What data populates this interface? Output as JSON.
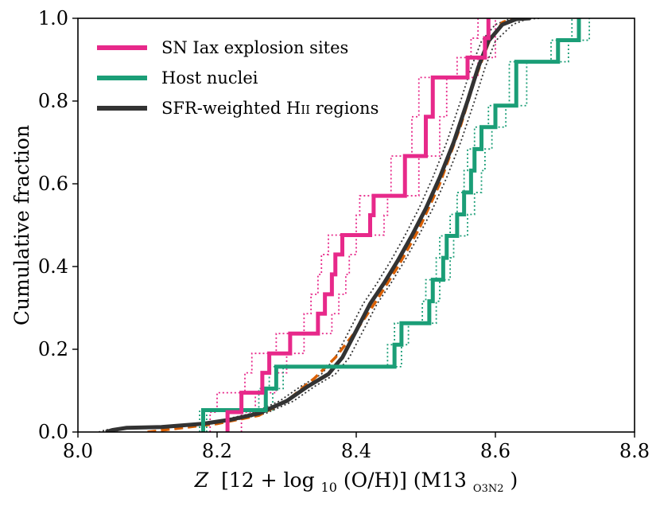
{
  "chart_data": {
    "type": "line",
    "xlabel": "Z [12 + log10(O/H)] (M13O3N2)",
    "xlabel_parts": {
      "z": "Z",
      "bracket_text": "[12 + log",
      "sub10": "10",
      "oh_text": "(O/H)] (M13",
      "sub_o3n2": "O3N2",
      "close": ")"
    },
    "ylabel": "Cumulative fraction",
    "xlim": [
      8.0,
      8.8
    ],
    "ylim": [
      0.0,
      1.0
    ],
    "xticks": [
      "8.0",
      "8.2",
      "8.4",
      "8.6",
      "8.8"
    ],
    "yticks": [
      "0.0",
      "0.2",
      "0.4",
      "0.6",
      "0.8",
      "1.0"
    ],
    "legend_position": "top-left",
    "legend": [
      {
        "label": "SN Iax explosion sites",
        "color": "#e7298a"
      },
      {
        "label": "Host nuclei",
        "color": "#1b9e77"
      },
      {
        "label": "SFR-weighted HII regions",
        "color": "#333333",
        "label_main": "SFR-weighted H",
        "label_sc": "II",
        "label_tail": " regions"
      }
    ],
    "series": [
      {
        "name": "SN Iax explosion sites",
        "color": "#e7298a",
        "style": "step",
        "x": [
          8.215,
          8.235,
          8.265,
          8.275,
          8.305,
          8.345,
          8.355,
          8.365,
          8.37,
          8.38,
          8.42,
          8.425,
          8.47,
          8.5,
          8.51,
          8.51,
          8.56,
          8.585,
          8.59
        ],
        "y": [
          0.048,
          0.095,
          0.143,
          0.19,
          0.238,
          0.286,
          0.333,
          0.381,
          0.429,
          0.476,
          0.524,
          0.571,
          0.667,
          0.762,
          0.81,
          0.857,
          0.905,
          0.952,
          1.0
        ]
      },
      {
        "name": "SN Iax explosion sites bound (upper)",
        "color": "#e7298a",
        "style": "dotted-step",
        "x": [
          8.19,
          8.2,
          8.24,
          8.25,
          8.285,
          8.325,
          8.335,
          8.345,
          8.35,
          8.36,
          8.4,
          8.405,
          8.45,
          8.48,
          8.49,
          8.49,
          8.545,
          8.565,
          8.575
        ],
        "y": [
          0.048,
          0.095,
          0.143,
          0.19,
          0.238,
          0.286,
          0.333,
          0.381,
          0.429,
          0.476,
          0.524,
          0.571,
          0.667,
          0.762,
          0.81,
          0.857,
          0.905,
          0.952,
          1.0
        ]
      },
      {
        "name": "SN Iax explosion sites bound (lower)",
        "color": "#e7298a",
        "style": "dotted-step",
        "x": [
          8.235,
          8.255,
          8.285,
          8.3,
          8.325,
          8.365,
          8.375,
          8.385,
          8.39,
          8.4,
          8.44,
          8.445,
          8.49,
          8.52,
          8.53,
          8.53,
          8.575,
          8.6,
          8.6
        ],
        "y": [
          0.048,
          0.095,
          0.143,
          0.19,
          0.238,
          0.286,
          0.333,
          0.381,
          0.429,
          0.476,
          0.524,
          0.571,
          0.667,
          0.762,
          0.81,
          0.857,
          0.905,
          0.952,
          1.0
        ]
      },
      {
        "name": "Host nuclei",
        "color": "#1b9e77",
        "style": "step",
        "x": [
          8.18,
          8.27,
          8.285,
          8.3,
          8.31,
          8.455,
          8.465,
          8.505,
          8.51,
          8.525,
          8.53,
          8.545,
          8.555,
          8.565,
          8.57,
          8.58,
          8.6,
          8.63,
          8.69,
          8.72
        ],
        "y": [
          0.053,
          0.105,
          0.158,
          0.158,
          0.158,
          0.211,
          0.263,
          0.316,
          0.368,
          0.421,
          0.474,
          0.526,
          0.579,
          0.632,
          0.684,
          0.737,
          0.789,
          0.895,
          0.947,
          1.0
        ]
      },
      {
        "name": "Host nuclei bound (upper)",
        "color": "#1b9e77",
        "style": "dotted-step",
        "x": [
          8.175,
          8.26,
          8.275,
          8.29,
          8.3,
          8.445,
          8.455,
          8.495,
          8.5,
          8.515,
          8.52,
          8.535,
          8.545,
          8.555,
          8.56,
          8.57,
          8.59,
          8.62,
          8.68,
          8.71
        ],
        "y": [
          0.053,
          0.105,
          0.158,
          0.158,
          0.158,
          0.211,
          0.263,
          0.316,
          0.368,
          0.421,
          0.474,
          0.526,
          0.579,
          0.632,
          0.684,
          0.737,
          0.789,
          0.895,
          0.947,
          1.0
        ]
      },
      {
        "name": "Host nuclei bound (lower)",
        "color": "#1b9e77",
        "style": "dotted-step",
        "x": [
          8.185,
          8.28,
          8.295,
          8.31,
          8.32,
          8.465,
          8.475,
          8.515,
          8.52,
          8.535,
          8.54,
          8.56,
          8.57,
          8.58,
          8.585,
          8.595,
          8.615,
          8.645,
          8.705,
          8.735
        ],
        "y": [
          0.053,
          0.105,
          0.158,
          0.158,
          0.158,
          0.211,
          0.263,
          0.316,
          0.368,
          0.421,
          0.474,
          0.526,
          0.579,
          0.632,
          0.684,
          0.737,
          0.789,
          0.895,
          0.947,
          1.0
        ]
      },
      {
        "name": "SFR-weighted HII regions",
        "color": "#333333",
        "style": "line",
        "x": [
          8.04,
          8.05,
          8.07,
          8.12,
          8.18,
          8.22,
          8.26,
          8.3,
          8.33,
          8.36,
          8.38,
          8.4,
          8.42,
          8.44,
          8.46,
          8.48,
          8.5,
          8.52,
          8.54,
          8.56,
          8.575,
          8.59,
          8.61,
          8.63,
          8.65
        ],
        "y": [
          0.0,
          0.005,
          0.01,
          0.012,
          0.02,
          0.03,
          0.045,
          0.075,
          0.11,
          0.14,
          0.18,
          0.245,
          0.31,
          0.36,
          0.415,
          0.475,
          0.54,
          0.615,
          0.7,
          0.8,
          0.88,
          0.945,
          0.985,
          0.998,
          1.0
        ]
      },
      {
        "name": "SFR-weighted HII regions bound (upper)",
        "color": "#333333",
        "style": "dotted",
        "x": [
          8.03,
          8.04,
          8.06,
          8.11,
          8.17,
          8.21,
          8.25,
          8.29,
          8.32,
          8.35,
          8.37,
          8.39,
          8.41,
          8.43,
          8.45,
          8.47,
          8.49,
          8.51,
          8.53,
          8.55,
          8.565,
          8.58,
          8.6,
          8.62,
          8.635
        ],
        "y": [
          0.0,
          0.005,
          0.01,
          0.012,
          0.02,
          0.03,
          0.045,
          0.075,
          0.11,
          0.14,
          0.18,
          0.245,
          0.31,
          0.36,
          0.415,
          0.475,
          0.54,
          0.615,
          0.7,
          0.8,
          0.88,
          0.945,
          0.985,
          0.998,
          1.0
        ]
      },
      {
        "name": "SFR-weighted HII regions bound (lower)",
        "color": "#333333",
        "style": "dotted",
        "x": [
          8.05,
          8.06,
          8.08,
          8.13,
          8.19,
          8.23,
          8.27,
          8.31,
          8.34,
          8.37,
          8.39,
          8.41,
          8.43,
          8.45,
          8.47,
          8.49,
          8.51,
          8.53,
          8.55,
          8.57,
          8.585,
          8.6,
          8.625,
          8.645,
          8.665
        ],
        "y": [
          0.0,
          0.005,
          0.01,
          0.012,
          0.02,
          0.03,
          0.045,
          0.075,
          0.11,
          0.14,
          0.18,
          0.245,
          0.31,
          0.36,
          0.415,
          0.475,
          0.54,
          0.615,
          0.7,
          0.8,
          0.88,
          0.945,
          0.985,
          0.998,
          1.0
        ]
      },
      {
        "name": "Comparison distribution",
        "color": "#d95f02",
        "style": "dashed",
        "x": [
          8.1,
          8.2,
          8.26,
          8.3,
          8.34,
          8.37,
          8.4,
          8.43,
          8.46,
          8.49,
          8.52,
          8.55,
          8.57,
          8.59,
          8.61,
          8.625
        ],
        "y": [
          0.0,
          0.02,
          0.04,
          0.075,
          0.13,
          0.18,
          0.245,
          0.32,
          0.4,
          0.49,
          0.6,
          0.74,
          0.85,
          0.94,
          0.99,
          1.0
        ]
      }
    ]
  }
}
